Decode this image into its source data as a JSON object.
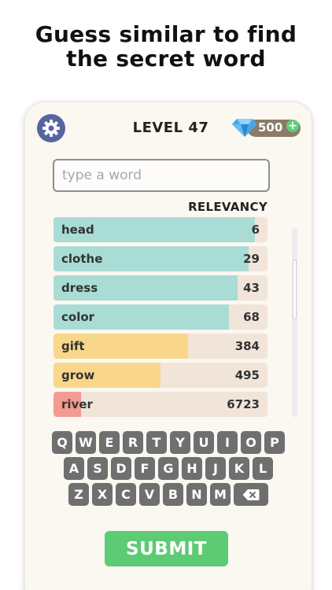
{
  "headline": {
    "line1": "Guess similar to find",
    "line2": "the secret word"
  },
  "header": {
    "level": "LEVEL 47",
    "gems": "500",
    "settings_icon": "gear-icon",
    "gem_icon": "diamond-icon",
    "plus": "+"
  },
  "input": {
    "placeholder": "type a word",
    "value": ""
  },
  "list_header": "RELEVANCY",
  "guesses": [
    {
      "word": "head",
      "rank": "6",
      "relevance": 0.94,
      "color": "#a9dcd4"
    },
    {
      "word": "clothe",
      "rank": "29",
      "relevance": 0.91,
      "color": "#a9dcd4"
    },
    {
      "word": "dress",
      "rank": "43",
      "relevance": 0.86,
      "color": "#a9dcd4"
    },
    {
      "word": "color",
      "rank": "68",
      "relevance": 0.82,
      "color": "#a9dcd4"
    },
    {
      "word": "gift",
      "rank": "384",
      "relevance": 0.63,
      "color": "#f9d78a"
    },
    {
      "word": "grow",
      "rank": "495",
      "relevance": 0.5,
      "color": "#f9d78a"
    },
    {
      "word": "river",
      "rank": "6723",
      "relevance": 0.13,
      "color": "#f39a91"
    }
  ],
  "keyboard": {
    "row1": [
      "Q",
      "W",
      "E",
      "R",
      "T",
      "Y",
      "U",
      "I",
      "O",
      "P"
    ],
    "row2": [
      "A",
      "S",
      "D",
      "F",
      "G",
      "H",
      "J",
      "K",
      "L"
    ],
    "row3": [
      "Z",
      "X",
      "C",
      "V",
      "B",
      "N",
      "M"
    ],
    "backspace_icon": "backspace-icon"
  },
  "submit_label": "SUBMIT"
}
